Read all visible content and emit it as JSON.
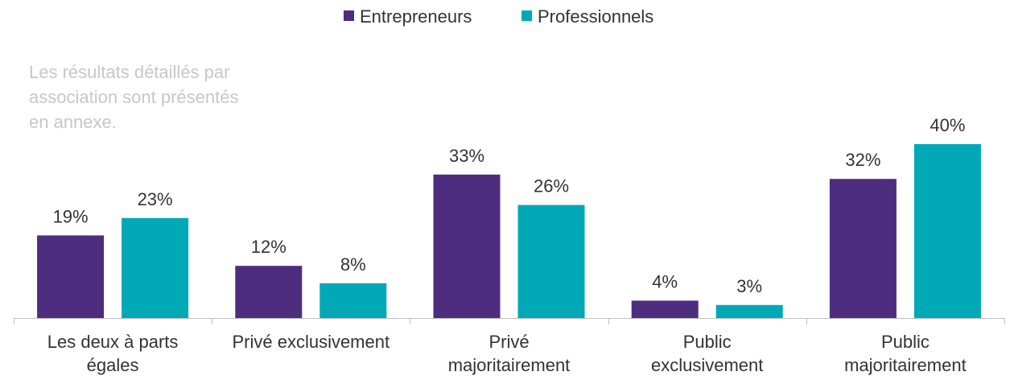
{
  "note": {
    "lines": [
      "Les résultats détaillés par",
      "association sont présentés",
      "en annexe."
    ]
  },
  "chart_data": {
    "type": "bar",
    "categories": [
      [
        "Les deux à parts",
        "égales"
      ],
      [
        "Privé exclusivement"
      ],
      [
        "Privé",
        "majoritairement"
      ],
      [
        "Public",
        "exclusivement"
      ],
      [
        "Public",
        "majoritairement"
      ]
    ],
    "series": [
      {
        "name": "Entrepreneurs",
        "color": "#4e2d7f",
        "values": [
          19,
          12,
          33,
          4,
          32
        ],
        "labels": [
          "19%",
          "12%",
          "33%",
          "4%",
          "32%"
        ]
      },
      {
        "name": "Professionnels",
        "color": "#00a9b5",
        "values": [
          23,
          8,
          26,
          3,
          40
        ],
        "labels": [
          "23%",
          "8%",
          "26%",
          "3%",
          "40%"
        ]
      }
    ],
    "title": "",
    "xlabel": "",
    "ylabel": "",
    "ylim": [
      0,
      50
    ],
    "grid": false,
    "legend": "top-center",
    "axis_color": "#bfbfbf"
  }
}
